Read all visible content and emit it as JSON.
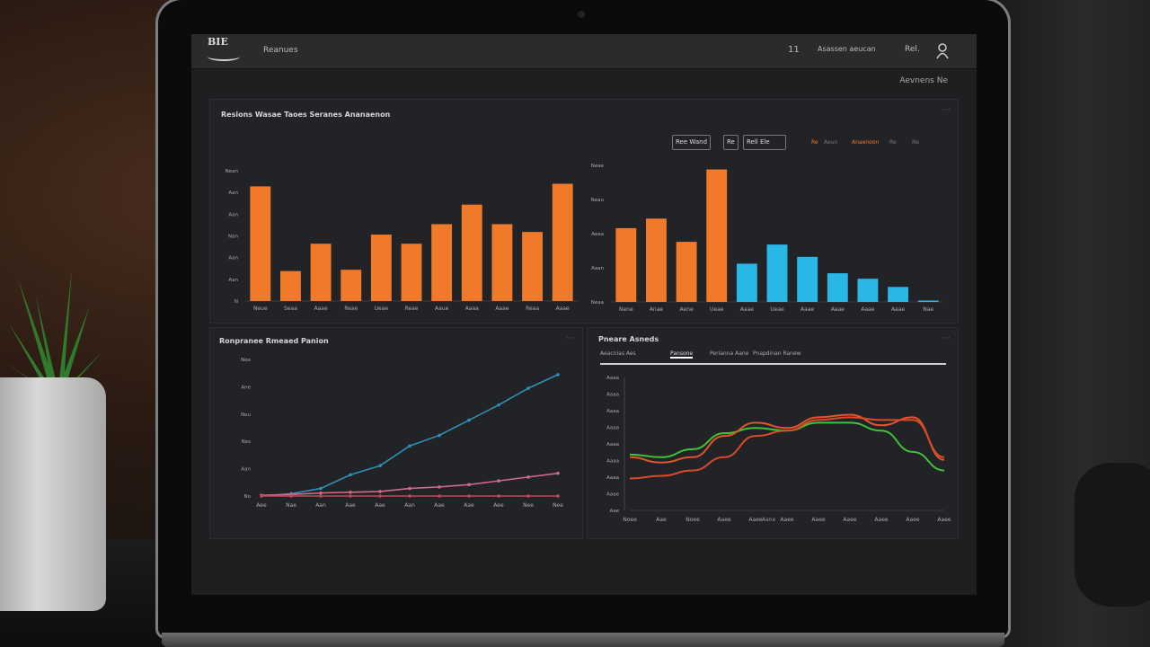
{
  "app": {
    "logo_text": "BIE",
    "nav_label": "Reanues",
    "topbar": {
      "count": "11",
      "link": "Asassen aeucan",
      "short": "Rel.",
      "sub_right": "Aevnens Ne"
    }
  },
  "panels": {
    "bar": {
      "title": "Resions Wasae Taoes Seranes Ananaenon",
      "chips": [
        "Ree Wand",
        "Re",
        "Rell Ele"
      ],
      "legend": [
        {
          "label": "Re",
          "color": "#f07a2a"
        },
        {
          "label": "Aeun",
          "color": "#777777"
        },
        {
          "label": "Anaenoon",
          "color": "#f07a2a"
        },
        {
          "label": "Re",
          "color": "#777777"
        },
        {
          "label": "Ne",
          "color": "#777777"
        }
      ]
    },
    "line": {
      "title": "Ronpranee Rmeaed Panion"
    },
    "area": {
      "title": "Pneare Asneds",
      "tabs": [
        "Aeacnias Aes",
        "Pansone",
        "Perianna Aane",
        "Pnapdinan Ranew"
      ],
      "x_caption": "Aane"
    }
  },
  "chart_data": [
    {
      "type": "bar",
      "title": "",
      "categories": [
        "Neue",
        "Seaa",
        "Aaae",
        "Reae",
        "Ueae",
        "Reae",
        "Aaue",
        "Aaaa",
        "Aaae",
        "Reaa",
        "Aaae"
      ],
      "series": [
        {
          "values": [
            88,
            23,
            44,
            24,
            51,
            44,
            59,
            74,
            59,
            53,
            90
          ]
        }
      ],
      "y_ticks": [
        "Nean",
        "Aan",
        "Aan",
        "Nan",
        "Aan",
        "Aan",
        "N"
      ],
      "ylim": [
        0,
        100
      ],
      "colors": [
        "#f07a2a"
      ]
    },
    {
      "type": "bar",
      "title": "",
      "categories": [
        "Nene",
        "Anae",
        "Aene",
        "Ueae",
        "Aaae",
        "Ueae",
        "Aaae",
        "Aaae",
        "Aaae",
        "Aaae",
        "Nae"
      ],
      "series": [
        {
          "values": [
            54,
            61,
            44,
            97,
            28,
            42,
            33,
            21,
            17,
            11,
            1
          ]
        }
      ],
      "y_ticks": [
        "Neae",
        "Neau",
        "Aeaa",
        "Aaan",
        "Neaa"
      ],
      "ylim": [
        0,
        100
      ],
      "colors": [
        "#f07a2a",
        "#f07a2a",
        "#f07a2a",
        "#f07a2a",
        "#29b7e6",
        "#29b7e6",
        "#29b7e6",
        "#29b7e6",
        "#29b7e6",
        "#29b7e6",
        "#29b7e6"
      ]
    },
    {
      "type": "line",
      "title": "",
      "x": [
        "Aee",
        "Nae",
        "Aan",
        "Aae",
        "Aae",
        "Aan",
        "Aae",
        "Aae",
        "Aee",
        "Nee",
        "Nee"
      ],
      "series": [
        {
          "values": [
            0,
            3,
            10,
            28,
            40,
            66,
            80,
            100,
            120,
            142,
            160
          ],
          "color": "#2e8fb8"
        },
        {
          "values": [
            1,
            2,
            4,
            5,
            6,
            10,
            12,
            15,
            20,
            25,
            30
          ],
          "color": "#d06a8a"
        },
        {
          "values": [
            0,
            0,
            0,
            0,
            0,
            0,
            0,
            0,
            0,
            0,
            0
          ],
          "color": "#c9464f"
        }
      ],
      "y_ticks": [
        "Nee",
        "Ane",
        "Neu",
        "Nes",
        "Aan",
        "No"
      ],
      "ylim": [
        0,
        180
      ]
    },
    {
      "type": "line",
      "title": "",
      "x": [
        "Noee",
        "Aae",
        "Noee",
        "Aaee",
        "Aaee",
        "Aaee",
        "Aaee",
        "Aaee",
        "Aaee",
        "Aaee",
        "Aaee"
      ],
      "series": [
        {
          "values": [
            42,
            40,
            46,
            58,
            62,
            60,
            66,
            66,
            60,
            44,
            30
          ],
          "color": "#3ec23a"
        },
        {
          "values": [
            40,
            36,
            40,
            56,
            66,
            62,
            70,
            72,
            64,
            70,
            38
          ],
          "color": "#e0552c"
        },
        {
          "values": [
            24,
            26,
            30,
            40,
            56,
            60,
            68,
            70,
            68,
            68,
            40
          ],
          "color": "#d84a28"
        }
      ],
      "y_ticks": [
        "Aaaa",
        "Aaaa",
        "Aaaa",
        "Aaaa",
        "Aaaa",
        "Aaaa",
        "Aaaa",
        "Aaae",
        "Aae"
      ],
      "ylim": [
        0,
        100
      ]
    }
  ]
}
